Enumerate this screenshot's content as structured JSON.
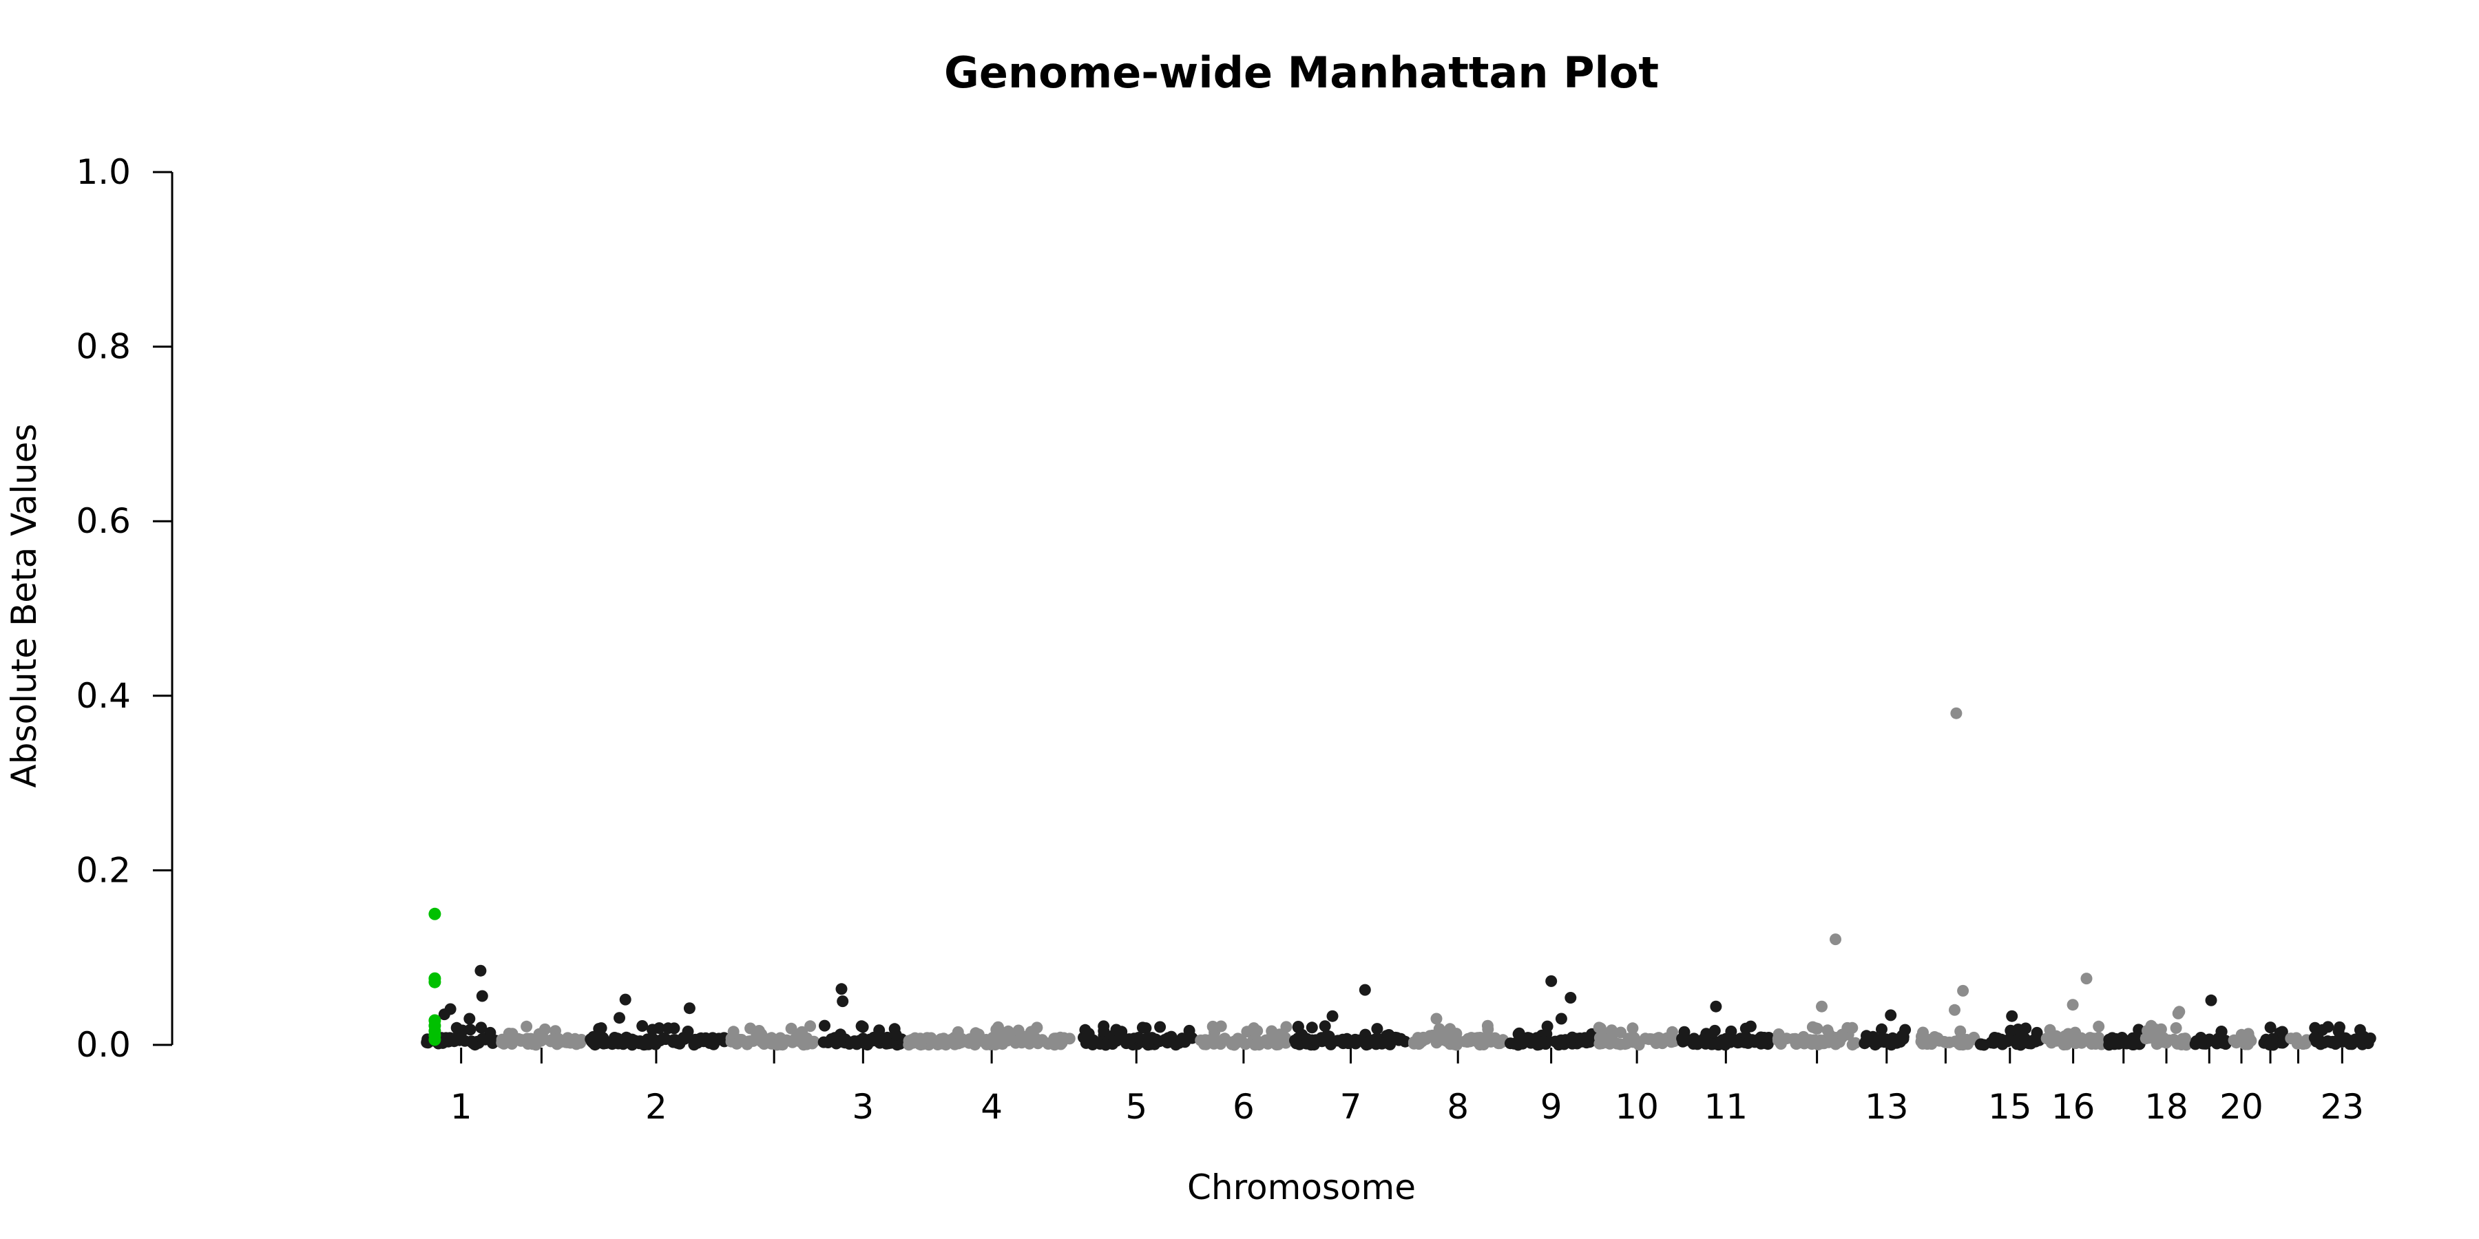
{
  "chart_data": {
    "type": "scatter",
    "title": "Genome-wide Manhattan Plot",
    "xlabel": "Chromosome",
    "ylabel": "Absolute Beta Values",
    "ylim": [
      0,
      1.0
    ],
    "yticks": [
      "0.0",
      "0.2",
      "0.4",
      "0.6",
      "0.8",
      "1.0"
    ],
    "grid": false,
    "legend": "none",
    "colors": {
      "odd": "#1a1a1a",
      "even": "#8c8c8c",
      "highlight": "#00c000"
    },
    "chromosomes": [
      {
        "label": "1",
        "start": 0.09,
        "end": 0.125
      },
      {
        "label": "",
        "start": 0.125,
        "end": 0.165
      },
      {
        "label": "2",
        "start": 0.165,
        "end": 0.232
      },
      {
        "label": "",
        "start": 0.232,
        "end": 0.275
      },
      {
        "label": "3",
        "start": 0.275,
        "end": 0.315
      },
      {
        "label": "4",
        "start": 0.315,
        "end": 0.395
      },
      {
        "label": "5",
        "start": 0.395,
        "end": 0.45
      },
      {
        "label": "6",
        "start": 0.45,
        "end": 0.495
      },
      {
        "label": "7",
        "start": 0.495,
        "end": 0.55
      },
      {
        "label": "8",
        "start": 0.55,
        "end": 0.595
      },
      {
        "label": "9",
        "start": 0.595,
        "end": 0.637
      },
      {
        "label": "10",
        "start": 0.637,
        "end": 0.675
      },
      {
        "label": "11",
        "start": 0.675,
        "end": 0.72
      },
      {
        "label": "",
        "start": 0.72,
        "end": 0.76
      },
      {
        "label": "13",
        "start": 0.76,
        "end": 0.785
      },
      {
        "label": "",
        "start": 0.785,
        "end": 0.815
      },
      {
        "label": "15",
        "start": 0.815,
        "end": 0.845
      },
      {
        "label": "16",
        "start": 0.845,
        "end": 0.874
      },
      {
        "label": "",
        "start": 0.874,
        "end": 0.892
      },
      {
        "label": "18",
        "start": 0.892,
        "end": 0.914
      },
      {
        "label": "",
        "start": 0.914,
        "end": 0.932
      },
      {
        "label": "20",
        "start": 0.932,
        "end": 0.944
      },
      {
        "label": "",
        "start": 0.944,
        "end": 0.959
      },
      {
        "label": "",
        "start": 0.959,
        "end": 0.97
      },
      {
        "label": "23",
        "start": 0.97,
        "end": 1.0
      }
    ],
    "highlighted_points": [
      {
        "chr": "1",
        "y": 0.15
      },
      {
        "chr": "1",
        "y": 0.076
      },
      {
        "chr": "1",
        "y": 0.072
      },
      {
        "chr": "1",
        "y": 0.028
      },
      {
        "chr": "1",
        "y": 0.022
      },
      {
        "chr": "1",
        "y": 0.016
      },
      {
        "chr": "1",
        "y": 0.011
      },
      {
        "chr": "1",
        "y": 0.006
      }
    ],
    "notable_points": [
      {
        "chr": "14",
        "y": 0.38
      },
      {
        "chr": "12",
        "y": 0.121
      },
      {
        "chr": "1",
        "y": 0.085
      },
      {
        "chr": "16",
        "y": 0.076
      },
      {
        "chr": "9",
        "y": 0.073
      },
      {
        "chr": "3",
        "y": 0.064
      },
      {
        "chr": "7",
        "y": 0.063
      },
      {
        "chr": "14",
        "y": 0.062
      },
      {
        "chr": "1",
        "y": 0.056
      },
      {
        "chr": "9",
        "y": 0.054
      },
      {
        "chr": "2",
        "y": 0.052
      },
      {
        "chr": "19",
        "y": 0.051
      },
      {
        "chr": "3",
        "y": 0.05
      },
      {
        "chr": "16",
        "y": 0.046
      },
      {
        "chr": "11",
        "y": 0.044
      },
      {
        "chr": "12",
        "y": 0.044
      },
      {
        "chr": "2",
        "y": 0.042
      },
      {
        "chr": "1",
        "y": 0.041
      },
      {
        "chr": "14",
        "y": 0.04
      },
      {
        "chr": "18",
        "y": 0.038
      },
      {
        "chr": "18",
        "y": 0.036
      },
      {
        "chr": "1",
        "y": 0.035
      },
      {
        "chr": "13",
        "y": 0.034
      },
      {
        "chr": "7",
        "y": 0.033
      },
      {
        "chr": "15",
        "y": 0.033
      },
      {
        "chr": "2",
        "y": 0.031
      },
      {
        "chr": "8",
        "y": 0.03
      },
      {
        "chr": "9",
        "y": 0.03
      },
      {
        "chr": "1",
        "y": 0.03
      }
    ]
  }
}
